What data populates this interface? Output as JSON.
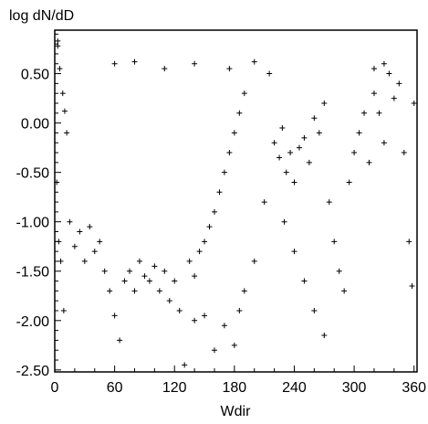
{
  "chart_data": {
    "type": "scatter",
    "title": "",
    "xlabel": "Wdir",
    "ylabel": "log dN/dD",
    "xlim": [
      0,
      363
    ],
    "ylim": [
      -2.52,
      0.94
    ],
    "xticks": [
      0,
      60,
      120,
      180,
      240,
      300,
      360
    ],
    "xtick_labels": [
      "0",
      "60",
      "120",
      "180",
      "240",
      "300",
      "360"
    ],
    "yticks": [
      0.5,
      0.0,
      -0.5,
      -1.0,
      -1.5,
      -2.0,
      -2.5
    ],
    "ytick_labels": [
      "0.50",
      "0.00",
      "-0.50",
      "-1.00",
      "-1.50",
      "-2.00",
      "-2.50"
    ],
    "grid": false,
    "marker": "plus",
    "marker_color": "#000000",
    "series": [
      {
        "points": [
          [
            3,
            0.83
          ],
          [
            3,
            0.78
          ],
          [
            5,
            0.55
          ],
          [
            8,
            0.3
          ],
          [
            10,
            0.12
          ],
          [
            12,
            -0.1
          ],
          [
            2,
            -0.6
          ],
          [
            6,
            -1.4
          ],
          [
            9,
            -1.9
          ],
          [
            4,
            -1.2
          ],
          [
            20,
            -1.25
          ],
          [
            25,
            -1.1
          ],
          [
            30,
            -1.4
          ],
          [
            35,
            -1.05
          ],
          [
            40,
            -1.3
          ],
          [
            45,
            -1.2
          ],
          [
            50,
            -1.5
          ],
          [
            55,
            -1.7
          ],
          [
            60,
            -1.95
          ],
          [
            65,
            -2.2
          ],
          [
            70,
            -1.6
          ],
          [
            75,
            -1.5
          ],
          [
            80,
            -1.7
          ],
          [
            85,
            -1.4
          ],
          [
            90,
            -1.55
          ],
          [
            95,
            -1.6
          ],
          [
            100,
            -1.45
          ],
          [
            105,
            -1.7
          ],
          [
            110,
            -1.5
          ],
          [
            115,
            -1.8
          ],
          [
            120,
            -1.6
          ],
          [
            125,
            -1.9
          ],
          [
            130,
            -2.45
          ],
          [
            135,
            -1.4
          ],
          [
            140,
            -1.55
          ],
          [
            145,
            -1.3
          ],
          [
            150,
            -1.2
          ],
          [
            155,
            -1.05
          ],
          [
            160,
            -0.9
          ],
          [
            165,
            -0.7
          ],
          [
            170,
            -0.5
          ],
          [
            175,
            -0.3
          ],
          [
            180,
            -0.1
          ],
          [
            185,
            0.1
          ],
          [
            190,
            0.3
          ],
          [
            60,
            0.6
          ],
          [
            80,
            0.62
          ],
          [
            110,
            0.55
          ],
          [
            140,
            0.6
          ],
          [
            175,
            0.55
          ],
          [
            200,
            0.62
          ],
          [
            215,
            0.5
          ],
          [
            220,
            -0.2
          ],
          [
            225,
            -0.35
          ],
          [
            228,
            -0.05
          ],
          [
            232,
            -0.5
          ],
          [
            236,
            -0.3
          ],
          [
            240,
            -0.6
          ],
          [
            245,
            -0.25
          ],
          [
            250,
            -0.15
          ],
          [
            255,
            -0.4
          ],
          [
            260,
            0.05
          ],
          [
            265,
            -0.1
          ],
          [
            270,
            0.2
          ],
          [
            275,
            -0.8
          ],
          [
            280,
            -1.2
          ],
          [
            285,
            -1.5
          ],
          [
            290,
            -1.7
          ],
          [
            295,
            -0.6
          ],
          [
            300,
            -0.3
          ],
          [
            305,
            -0.1
          ],
          [
            310,
            0.1
          ],
          [
            315,
            -0.4
          ],
          [
            320,
            0.3
          ],
          [
            325,
            0.1
          ],
          [
            330,
            -0.2
          ],
          [
            335,
            0.5
          ],
          [
            340,
            0.25
          ],
          [
            345,
            0.4
          ],
          [
            350,
            -0.3
          ],
          [
            355,
            -1.2
          ],
          [
            358,
            -1.65
          ],
          [
            360,
            0.2
          ],
          [
            330,
            0.6
          ],
          [
            320,
            0.55
          ],
          [
            270,
            -2.15
          ],
          [
            260,
            -1.9
          ],
          [
            250,
            -1.6
          ],
          [
            240,
            -1.3
          ],
          [
            230,
            -1.0
          ],
          [
            210,
            -0.8
          ],
          [
            200,
            -1.4
          ],
          [
            190,
            -1.7
          ],
          [
            185,
            -1.9
          ],
          [
            180,
            -2.25
          ],
          [
            170,
            -2.05
          ],
          [
            160,
            -2.3
          ],
          [
            150,
            -1.95
          ],
          [
            140,
            -2.0
          ],
          [
            15,
            -1.0
          ]
        ]
      }
    ]
  }
}
